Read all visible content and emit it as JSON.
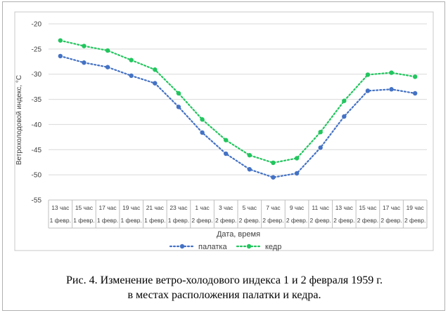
{
  "chart_data": {
    "type": "line",
    "ylabel": "Ветрохолодовой индекс, °С",
    "xlabel": "Дата, время",
    "ylim": [
      -55,
      -20
    ],
    "yticks": [
      -20,
      -25,
      -30,
      -35,
      -40,
      -45,
      -50,
      -55
    ],
    "grid": "horizontal",
    "legend_position": "bottom",
    "categories": [
      {
        "time": "13 час",
        "date": "1 февр."
      },
      {
        "time": "15 час",
        "date": "1 февр."
      },
      {
        "time": "17 час",
        "date": "1 февр."
      },
      {
        "time": "19 час",
        "date": "1 февр."
      },
      {
        "time": "21 час",
        "date": "1 февр."
      },
      {
        "time": "23 час",
        "date": "1 февр."
      },
      {
        "time": "1 час",
        "date": "2 февр."
      },
      {
        "time": "3 час",
        "date": "2 февр."
      },
      {
        "time": "5 час",
        "date": "2 февр."
      },
      {
        "time": "7 час",
        "date": "2 февр."
      },
      {
        "time": "9 час",
        "date": "2 февр."
      },
      {
        "time": "11 час",
        "date": "2 февр."
      },
      {
        "time": "13 час",
        "date": "2 февр."
      },
      {
        "time": "15 час",
        "date": "2 февр."
      },
      {
        "time": "17 час",
        "date": "2 февр."
      },
      {
        "time": "19 час",
        "date": "2 февр."
      }
    ],
    "series": [
      {
        "name": "палатка",
        "color": "#4472c4",
        "values": [
          -26.4,
          -27.7,
          -28.6,
          -30.3,
          -31.8,
          -36.5,
          -41.6,
          -45.8,
          -48.9,
          -50.5,
          -49.7,
          -44.6,
          -38.4,
          -33.3,
          -33.0,
          -33.8
        ]
      },
      {
        "name": "кедр",
        "color": "#22c55e",
        "values": [
          -23.3,
          -24.4,
          -25.3,
          -27.2,
          -29.1,
          -33.8,
          -39.0,
          -43.1,
          -46.1,
          -47.6,
          -46.7,
          -41.5,
          -35.3,
          -30.1,
          -29.7,
          -30.5
        ]
      }
    ]
  },
  "caption": {
    "line1": "Рис. 4. Изменение ветро-холодового индекса 1 и 2 февраля 1959 г.",
    "line2": "в местах расположения палатки и кедра."
  }
}
